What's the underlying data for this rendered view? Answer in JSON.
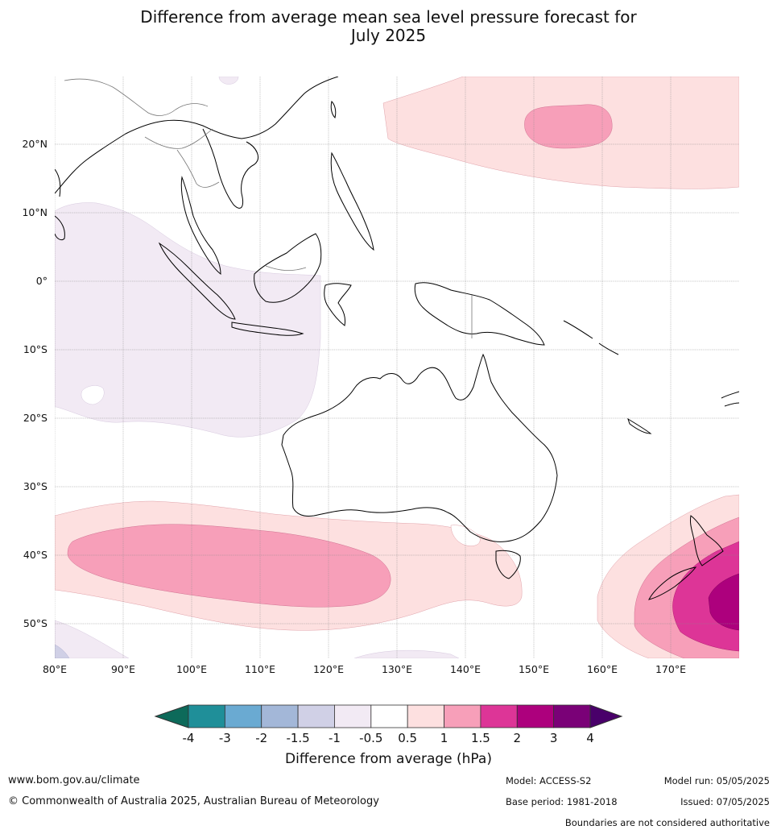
{
  "title_line1": "Difference from average mean sea level pressure forecast for",
  "title_line2": "July 2025",
  "lat_labels": [
    "20°N",
    "10°N",
    "0°",
    "10°S",
    "20°S",
    "30°S",
    "40°S",
    "50°S"
  ],
  "lon_labels": [
    "80°E",
    "90°E",
    "100°E",
    "110°E",
    "120°E",
    "130°E",
    "140°E",
    "150°E",
    "160°E",
    "170°E"
  ],
  "colorbar": {
    "ticks": [
      "-4",
      "-3",
      "-2",
      "-1.5",
      "-1",
      "-0.5",
      "0.5",
      "1",
      "1.5",
      "2",
      "3",
      "4"
    ],
    "colors": [
      "#0d6a5a",
      "#1f8f99",
      "#6aaad2",
      "#a3b7d8",
      "#d0d0e6",
      "#f2eaf4",
      "#ffffff",
      "#fde0e0",
      "#f79fb9",
      "#dd3597",
      "#ad007d",
      "#7a0177",
      "#49006a"
    ],
    "title": "Difference from average (hPa)"
  },
  "footer": {
    "website": "www.bom.gov.au/climate",
    "copyright": "© Commonwealth of Australia 2025, Australian Bureau of Meteorology",
    "model": "Model: ACCESS-S2",
    "base_period": "Base period: 1981-2018",
    "model_run": "Model run: 05/05/2025",
    "issued": "Issued: 07/05/2025",
    "disclaimer": "Boundaries are not considered authoritative"
  }
}
